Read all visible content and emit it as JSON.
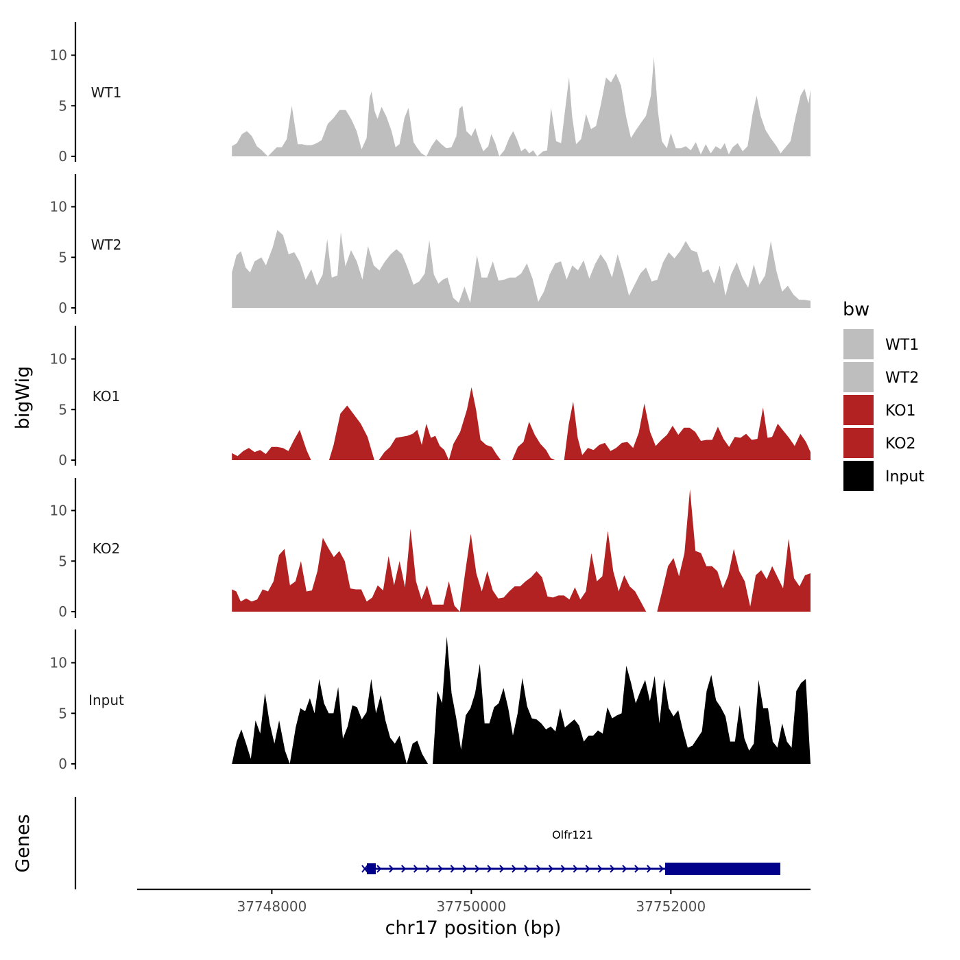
{
  "chart_data": {
    "type": "area",
    "title": "",
    "ylabel_tracks": "bigWig",
    "ylabel_genes": "Genes",
    "xlabel": "chr17 position (bp)",
    "xlim": [
      37746650,
      37753400
    ],
    "x_ticks": [
      37748000,
      37750000,
      37752000
    ],
    "x_tick_labels": [
      "37748000",
      "37750000",
      "37752000"
    ],
    "ylim": [
      0,
      13.5
    ],
    "y_ticks": [
      0,
      5,
      10
    ],
    "y_tick_labels": [
      "0",
      "5",
      "10"
    ],
    "colors": {
      "WT1": "#bebebe",
      "WT2": "#bebebe",
      "KO1": "#b22222",
      "KO2": "#b22222",
      "Input": "#000000",
      "gene": "#00008b",
      "axis": "#000000"
    },
    "legend": {
      "title": "bw",
      "position": "right",
      "entries": [
        "WT1",
        "WT2",
        "KO1",
        "KO2",
        "Input"
      ]
    },
    "series": [
      {
        "name": "WT1",
        "label": "WT1",
        "segments": [
          [
            [
              37747600,
              1.0
            ],
            [
              37747650,
              1.3
            ],
            [
              37747700,
              2.2
            ],
            [
              37747750,
              2.5
            ],
            [
              37747800,
              2.0
            ],
            [
              37747850,
              1.0
            ],
            [
              37747900,
              0.6
            ],
            [
              37747960,
              0.0
            ],
            [
              37748000,
              0.4
            ],
            [
              37748050,
              0.9
            ],
            [
              37748100,
              0.9
            ],
            [
              37748150,
              1.7
            ],
            [
              37748200,
              5.0
            ],
            [
              37748260,
              1.2
            ],
            [
              37748300,
              1.2
            ],
            [
              37748350,
              1.1
            ],
            [
              37748400,
              1.1
            ],
            [
              37748450,
              1.3
            ],
            [
              37748500,
              1.6
            ],
            [
              37748560,
              3.2
            ],
            [
              37748620,
              3.8
            ],
            [
              37748680,
              4.6
            ],
            [
              37748740,
              4.6
            ],
            [
              37748800,
              3.6
            ],
            [
              37748850,
              2.5
            ],
            [
              37748900,
              0.7
            ],
            [
              37748950,
              1.8
            ],
            [
              37748980,
              5.8
            ],
            [
              37749000,
              6.4
            ],
            [
              37749030,
              4.5
            ],
            [
              37749060,
              3.7
            ],
            [
              37749100,
              4.9
            ],
            [
              37749150,
              3.9
            ],
            [
              37749200,
              2.5
            ],
            [
              37749240,
              0.9
            ],
            [
              37749280,
              1.2
            ],
            [
              37749330,
              3.8
            ],
            [
              37749370,
              4.8
            ],
            [
              37749420,
              1.4
            ],
            [
              37749460,
              0.8
            ],
            [
              37749500,
              0.3
            ],
            [
              37749550,
              0.0
            ],
            [
              37749600,
              1.0
            ],
            [
              37749650,
              1.7
            ],
            [
              37749700,
              1.2
            ],
            [
              37749750,
              0.8
            ],
            [
              37749800,
              0.9
            ],
            [
              37749850,
              2.0
            ],
            [
              37749880,
              4.7
            ],
            [
              37749910,
              5.0
            ],
            [
              37749950,
              2.5
            ],
            [
              37750000,
              2.0
            ],
            [
              37750040,
              2.8
            ],
            [
              37750080,
              1.5
            ],
            [
              37750120,
              0.5
            ],
            [
              37750170,
              1.0
            ],
            [
              37750200,
              2.2
            ],
            [
              37750240,
              1.3
            ],
            [
              37750280,
              0.0
            ],
            [
              37750330,
              0.6
            ],
            [
              37750380,
              1.8
            ],
            [
              37750420,
              2.5
            ],
            [
              37750460,
              1.6
            ],
            [
              37750500,
              0.5
            ],
            [
              37750540,
              0.8
            ],
            [
              37750580,
              0.3
            ],
            [
              37750620,
              0.6
            ],
            [
              37750660,
              0.0
            ],
            [
              37750720,
              0.5
            ],
            [
              37750760,
              0.6
            ],
            [
              37750800,
              4.8
            ],
            [
              37750850,
              1.5
            ]
          ]
        ],
        "segments_note": "WT1 continues",
        "points": [
          [
            37747600,
            1.0
          ],
          [
            37747650,
            1.3
          ],
          [
            37747700,
            2.2
          ],
          [
            37747750,
            2.5
          ],
          [
            37747800,
            2.0
          ],
          [
            37747850,
            1.0
          ],
          [
            37747900,
            0.6
          ],
          [
            37747960,
            0.0
          ],
          [
            37748000,
            0.4
          ],
          [
            37748050,
            0.9
          ],
          [
            37748100,
            0.9
          ],
          [
            37748150,
            1.7
          ],
          [
            37748200,
            5.0
          ],
          [
            37748260,
            1.2
          ],
          [
            37748300,
            1.2
          ],
          [
            37748350,
            1.1
          ],
          [
            37748400,
            1.1
          ],
          [
            37748450,
            1.3
          ],
          [
            37748500,
            1.6
          ],
          [
            37748560,
            3.2
          ],
          [
            37748620,
            3.8
          ],
          [
            37748680,
            4.6
          ],
          [
            37748740,
            4.6
          ],
          [
            37748800,
            3.6
          ],
          [
            37748850,
            2.5
          ],
          [
            37748900,
            0.7
          ],
          [
            37748950,
            1.8
          ],
          [
            37748980,
            5.8
          ],
          [
            37749000,
            6.4
          ],
          [
            37749030,
            4.5
          ],
          [
            37749060,
            3.7
          ],
          [
            37749100,
            4.9
          ],
          [
            37749150,
            3.9
          ],
          [
            37749200,
            2.5
          ],
          [
            37749240,
            0.9
          ],
          [
            37749280,
            1.2
          ],
          [
            37749330,
            3.8
          ],
          [
            37749370,
            4.8
          ],
          [
            37749420,
            1.4
          ],
          [
            37749460,
            0.8
          ],
          [
            37749500,
            0.3
          ],
          [
            37749550,
            0.0
          ],
          [
            37749600,
            1.0
          ],
          [
            37749650,
            1.7
          ],
          [
            37749700,
            1.2
          ],
          [
            37749750,
            0.8
          ],
          [
            37749800,
            0.9
          ],
          [
            37749850,
            2.0
          ],
          [
            37749880,
            4.7
          ],
          [
            37749910,
            5.0
          ],
          [
            37749950,
            2.5
          ],
          [
            37750000,
            2.0
          ],
          [
            37750040,
            2.8
          ],
          [
            37750080,
            1.5
          ],
          [
            37750120,
            0.5
          ],
          [
            37750170,
            1.0
          ],
          [
            37750200,
            2.2
          ],
          [
            37750240,
            1.3
          ],
          [
            37750280,
            0.0
          ],
          [
            37750330,
            0.6
          ],
          [
            37750380,
            1.8
          ],
          [
            37750420,
            2.5
          ],
          [
            37750460,
            1.6
          ],
          [
            37750500,
            0.5
          ],
          [
            37750540,
            0.8
          ],
          [
            37750580,
            0.3
          ],
          [
            37750620,
            0.6
          ],
          [
            37750660,
            0.0
          ],
          [
            37750720,
            0.5
          ],
          [
            37750760,
            0.6
          ],
          [
            37750800,
            4.8
          ],
          [
            37750850,
            1.5
          ],
          [
            37750900,
            1.3
          ],
          [
            37750940,
            4.6
          ],
          [
            37750980,
            7.8
          ],
          [
            37751010,
            4.0
          ],
          [
            37751050,
            1.2
          ],
          [
            37751100,
            1.7
          ],
          [
            37751150,
            4.2
          ],
          [
            37751200,
            2.7
          ],
          [
            37751250,
            3.0
          ],
          [
            37751300,
            5.2
          ],
          [
            37751350,
            7.8
          ],
          [
            37751400,
            7.3
          ],
          [
            37751450,
            8.2
          ],
          [
            37751500,
            7.0
          ],
          [
            37751550,
            4.0
          ],
          [
            37751600,
            1.8
          ],
          [
            37751650,
            2.6
          ],
          [
            37751700,
            3.3
          ],
          [
            37751750,
            4.0
          ],
          [
            37751800,
            6.0
          ],
          [
            37751830,
            9.8
          ],
          [
            37751870,
            4.5
          ],
          [
            37751910,
            1.5
          ],
          [
            37751960,
            0.8
          ],
          [
            37752000,
            2.3
          ],
          [
            37752050,
            0.8
          ],
          [
            37752100,
            0.8
          ],
          [
            37752150,
            1.0
          ],
          [
            37752200,
            0.6
          ],
          [
            37752250,
            1.4
          ],
          [
            37752300,
            0.2
          ],
          [
            37752350,
            1.2
          ],
          [
            37752400,
            0.3
          ],
          [
            37752450,
            1.0
          ],
          [
            37752500,
            0.7
          ],
          [
            37752540,
            1.3
          ],
          [
            37752580,
            0.2
          ],
          [
            37752620,
            0.9
          ],
          [
            37752670,
            1.3
          ],
          [
            37752720,
            0.5
          ],
          [
            37752770,
            1.0
          ],
          [
            37752820,
            4.2
          ],
          [
            37752860,
            6.0
          ],
          [
            37752900,
            4.0
          ],
          [
            37752950,
            2.6
          ],
          [
            37753000,
            1.8
          ],
          [
            37753060,
            1.0
          ],
          [
            37753100,
            0.3
          ],
          [
            37753150,
            0.9
          ],
          [
            37753200,
            1.5
          ],
          [
            37753250,
            3.9
          ],
          [
            37753300,
            6.0
          ],
          [
            37753340,
            6.7
          ],
          [
            37753380,
            5.2
          ],
          [
            37753400,
            6.6
          ]
        ]
      }
    ],
    "gene": {
      "name": "Olfr121",
      "strand": "+",
      "start": 37749130,
      "end": 37753200,
      "utr_start": [
        37749130,
        37749220
      ],
      "cds": [
        37752080,
        37753200
      ]
    }
  }
}
